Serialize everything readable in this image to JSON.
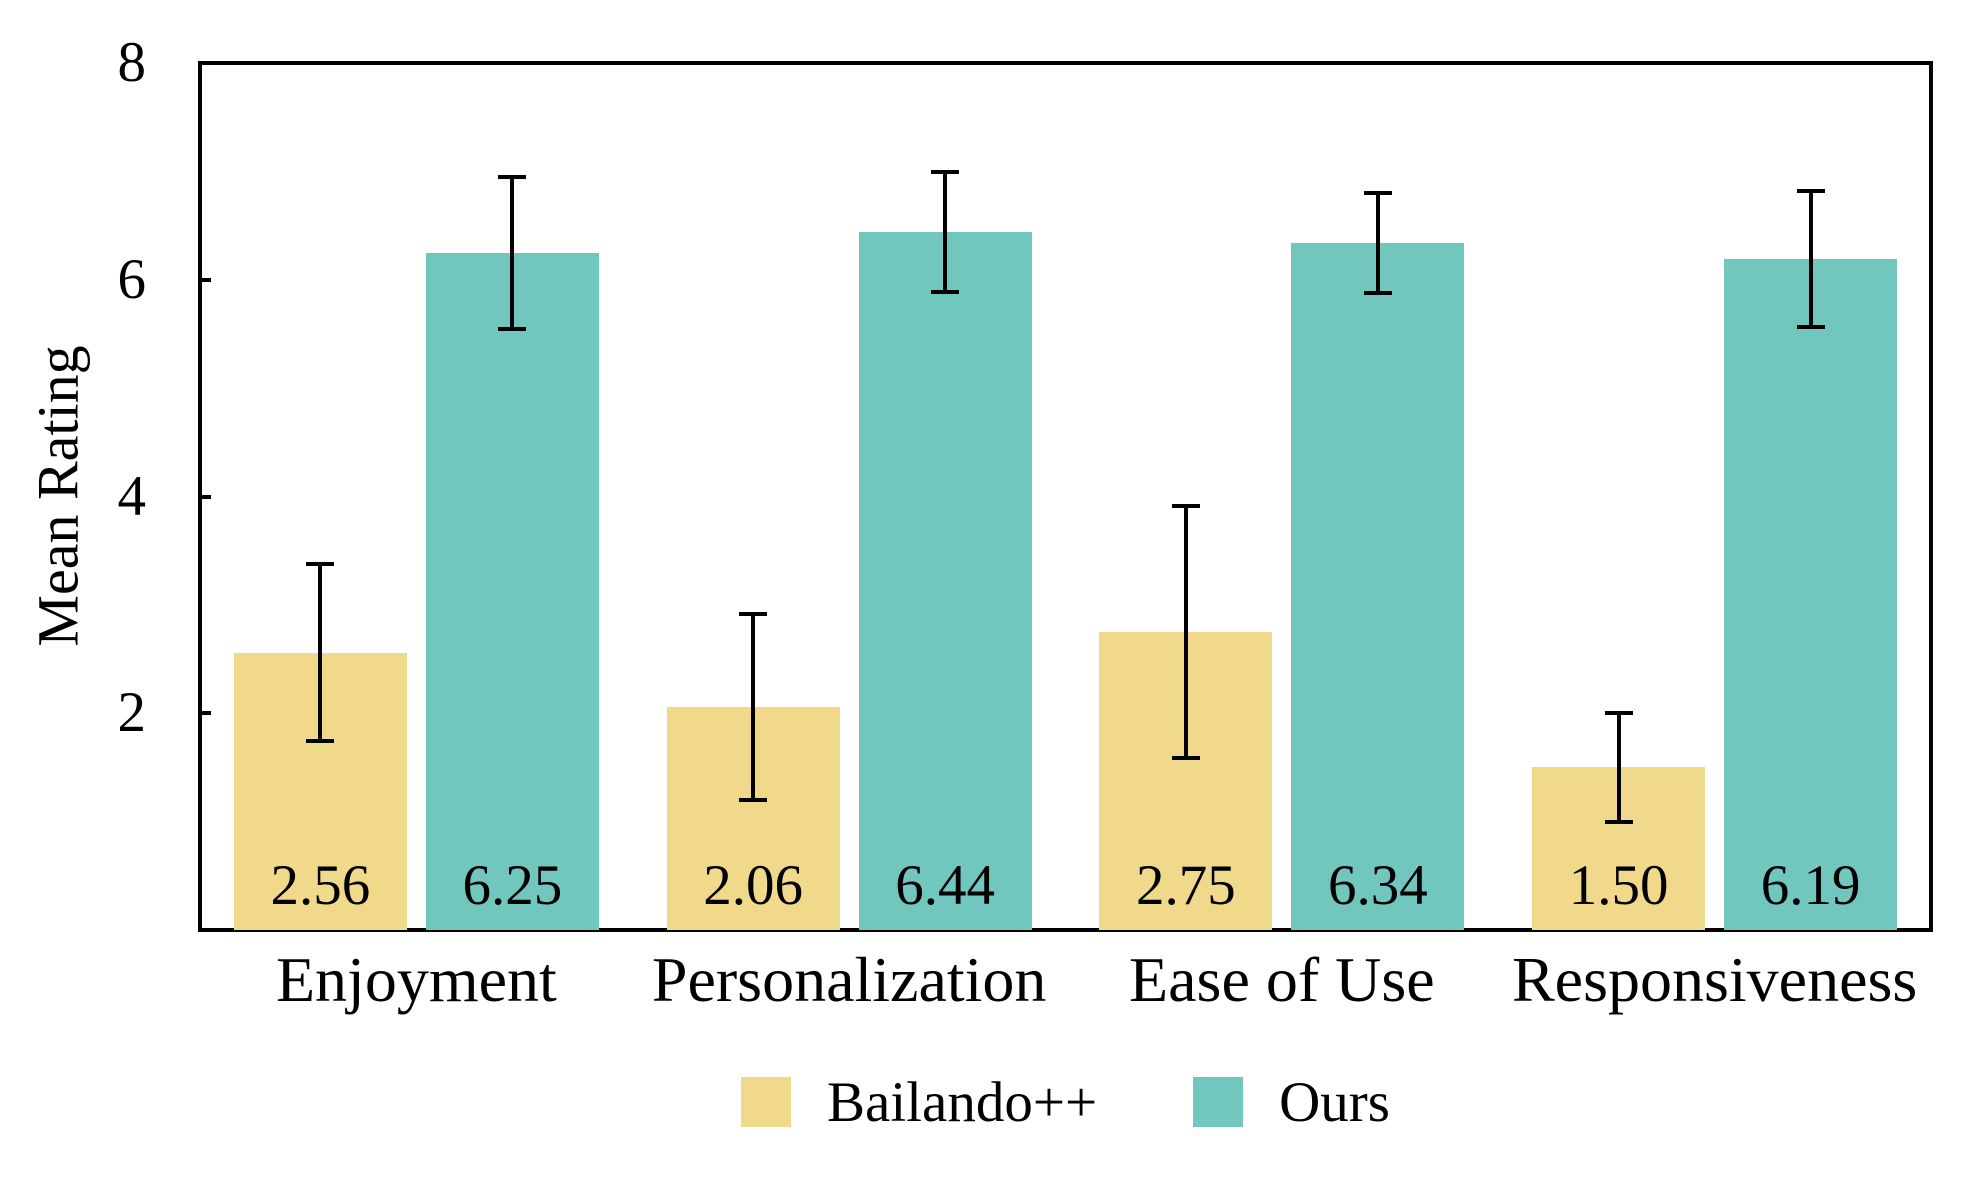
{
  "figure": {
    "background_color": "#ffffff",
    "axis_color": "#000000",
    "text_color": "#000000",
    "ylabel": "Mean Rating"
  },
  "chart_data": {
    "type": "bar",
    "title": "",
    "xlabel": "",
    "ylabel": "Mean Rating",
    "ylim": [
      0,
      8
    ],
    "yticks": [
      2,
      4,
      6,
      8
    ],
    "grid": false,
    "error_bars": true,
    "legend_position": "bottom-center",
    "categories": [
      "Enjoyment",
      "Personalization",
      "Ease of Use",
      "Responsiveness"
    ],
    "series": [
      {
        "name": "Bailando++",
        "color": "#F0D98B",
        "values": [
          2.56,
          2.06,
          2.75,
          1.5
        ],
        "value_labels": [
          "2.56",
          "2.06",
          "2.75",
          "1.50"
        ],
        "errors": [
          0.82,
          0.86,
          1.16,
          0.5
        ]
      },
      {
        "name": "Ours",
        "color": "#71C6BD",
        "values": [
          6.25,
          6.44,
          6.34,
          6.19
        ],
        "value_labels": [
          "6.25",
          "6.44",
          "6.34",
          "6.19"
        ],
        "errors": [
          0.7,
          0.55,
          0.46,
          0.63
        ]
      }
    ]
  }
}
